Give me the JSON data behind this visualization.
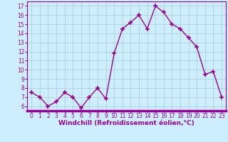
{
  "x": [
    0,
    1,
    2,
    3,
    4,
    5,
    6,
    7,
    8,
    9,
    10,
    11,
    12,
    13,
    14,
    15,
    16,
    17,
    18,
    19,
    20,
    21,
    22,
    23
  ],
  "y": [
    7.5,
    7.0,
    6.0,
    6.5,
    7.5,
    7.0,
    5.8,
    7.0,
    8.0,
    6.8,
    11.8,
    14.5,
    15.2,
    16.0,
    14.5,
    17.0,
    16.3,
    15.0,
    14.5,
    13.5,
    12.5,
    9.5,
    9.8,
    7.0
  ],
  "line_color": "#990099",
  "marker": "+",
  "marker_size": 4,
  "marker_lw": 1.2,
  "bg_color": "#cceeff",
  "grid_color": "#aacccc",
  "xlabel": "Windchill (Refroidissement éolien,°C)",
  "xlabel_color": "#990099",
  "tick_color": "#990099",
  "ylim": [
    5.5,
    17.5
  ],
  "xlim": [
    -0.5,
    23.5
  ],
  "yticks": [
    6,
    7,
    8,
    9,
    10,
    11,
    12,
    13,
    14,
    15,
    16,
    17
  ],
  "xticks": [
    0,
    1,
    2,
    3,
    4,
    5,
    6,
    7,
    8,
    9,
    10,
    11,
    12,
    13,
    14,
    15,
    16,
    17,
    18,
    19,
    20,
    21,
    22,
    23
  ],
  "spine_color": "#990099",
  "line_width": 1.0,
  "fig_bg_color": "#cceeff",
  "tick_fontsize": 5.5,
  "xlabel_fontsize": 6.5,
  "xlabel_fontweight": "bold"
}
